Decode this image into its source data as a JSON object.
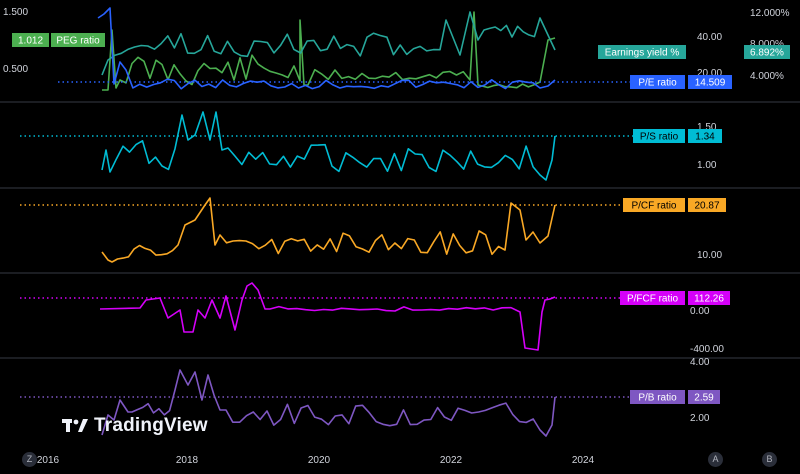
{
  "chart_data": {
    "type": "line",
    "x_labels": [
      "2016",
      "2018",
      "2020",
      "2022",
      "2024"
    ],
    "panes": [
      {
        "name": "valuation",
        "left_ticks": [
          "1.500",
          "0.500"
        ],
        "right_ticks_inner": [
          "40.00",
          "20.00"
        ],
        "right_ticks_outer": [
          "12.000%",
          "8.000%",
          "4.000%"
        ],
        "series": [
          {
            "name": "PEG ratio",
            "value": "1.012",
            "color": "#4caf50"
          },
          {
            "name": "Earnings yield %",
            "value": "6.892%",
            "color": "#26a69a"
          },
          {
            "name": "P/E ratio",
            "value": "14.509",
            "color": "#2962ff"
          }
        ]
      },
      {
        "name": "ps",
        "right_ticks": [
          "1.50",
          "1.00"
        ],
        "series": [
          {
            "name": "P/S ratio",
            "value": "1.34",
            "color": "#00bcd4"
          }
        ]
      },
      {
        "name": "pcf",
        "right_ticks": [
          "10.00"
        ],
        "series": [
          {
            "name": "P/CF ratio",
            "value": "20.87",
            "color": "#f9a825"
          }
        ]
      },
      {
        "name": "pfcf",
        "right_ticks": [
          "0.00",
          "-400.00"
        ],
        "series": [
          {
            "name": "P/FCF ratio",
            "value": "112.26",
            "color": "#d500f9"
          }
        ]
      },
      {
        "name": "pb",
        "right_ticks": [
          "4.00",
          "2.00"
        ],
        "series": [
          {
            "name": "P/B ratio",
            "value": "2.59",
            "color": "#7e57c2"
          }
        ]
      }
    ]
  },
  "watermark": "TradingView",
  "corner_buttons": [
    "Z",
    "A",
    "B"
  ]
}
